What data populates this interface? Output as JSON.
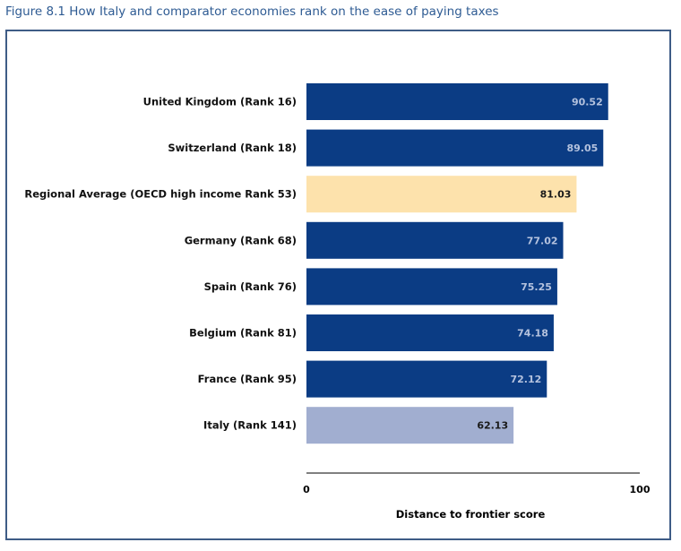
{
  "figure": {
    "title": "Figure 8.1 How Italy and comparator economies rank on the ease of paying taxes"
  },
  "colors": {
    "economy_bar": "#0b3c84",
    "regional_bar": "#fde2ac",
    "italy_bar": "#a1aed0",
    "frame": "#3e5c86",
    "title": "#2e5b93"
  },
  "chart_data": {
    "type": "bar",
    "orientation": "horizontal",
    "categories": [
      "United Kingdom (Rank 16)",
      "Switzerland (Rank 18)",
      "Regional Average (OECD high income Rank 53)",
      "Germany (Rank 68)",
      "Spain (Rank 76)",
      "Belgium (Rank 81)",
      "France (Rank 95)",
      "Italy (Rank 141)"
    ],
    "values": [
      90.52,
      89.05,
      81.03,
      77.02,
      75.25,
      74.18,
      72.12,
      62.13
    ],
    "value_labels": [
      "90.52",
      "89.05",
      "81.03",
      "77.02",
      "75.25",
      "74.18",
      "72.12",
      "62.13"
    ],
    "bar_roles": [
      "economy",
      "economy",
      "regional",
      "economy",
      "economy",
      "economy",
      "economy",
      "italy"
    ],
    "xlabel": "Distance to frontier score",
    "xlim": [
      0,
      100
    ],
    "x_ticks": [
      "0",
      "100"
    ],
    "grid": false,
    "legend": "none"
  }
}
